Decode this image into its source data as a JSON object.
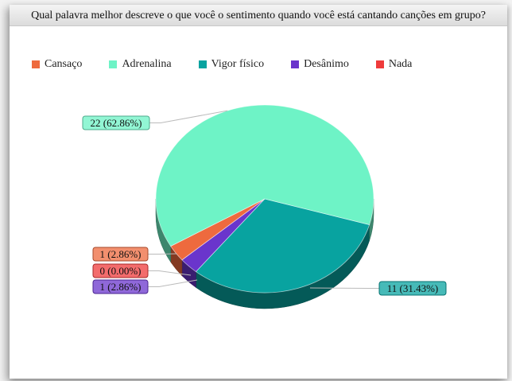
{
  "title": "Qual palavra melhor descreve o que você o sentimento quando você está cantando canções em grupo?",
  "chart_data": {
    "type": "pie",
    "title": "Qual palavra melhor descreve o que você o sentimento quando você está cantando canções em grupo?",
    "legend_position": "top-left",
    "series": [
      {
        "name": "Cansaço",
        "value": 1,
        "label": "1 (2.86%)",
        "color": "#ee6a3e"
      },
      {
        "name": "Adrenalina",
        "value": 22,
        "label": "22 (62.86%)",
        "color": "#6ef3c6"
      },
      {
        "name": "Vigor físico",
        "value": 11,
        "label": "11 (31.43%)",
        "color": "#08a3a0"
      },
      {
        "name": "Desânimo",
        "value": 1,
        "label": "1 (2.86%)",
        "color": "#6a35cc"
      },
      {
        "name": "Nada",
        "value": 0,
        "label": "0 (0.00%)",
        "color": "#ef3b3b"
      }
    ]
  }
}
